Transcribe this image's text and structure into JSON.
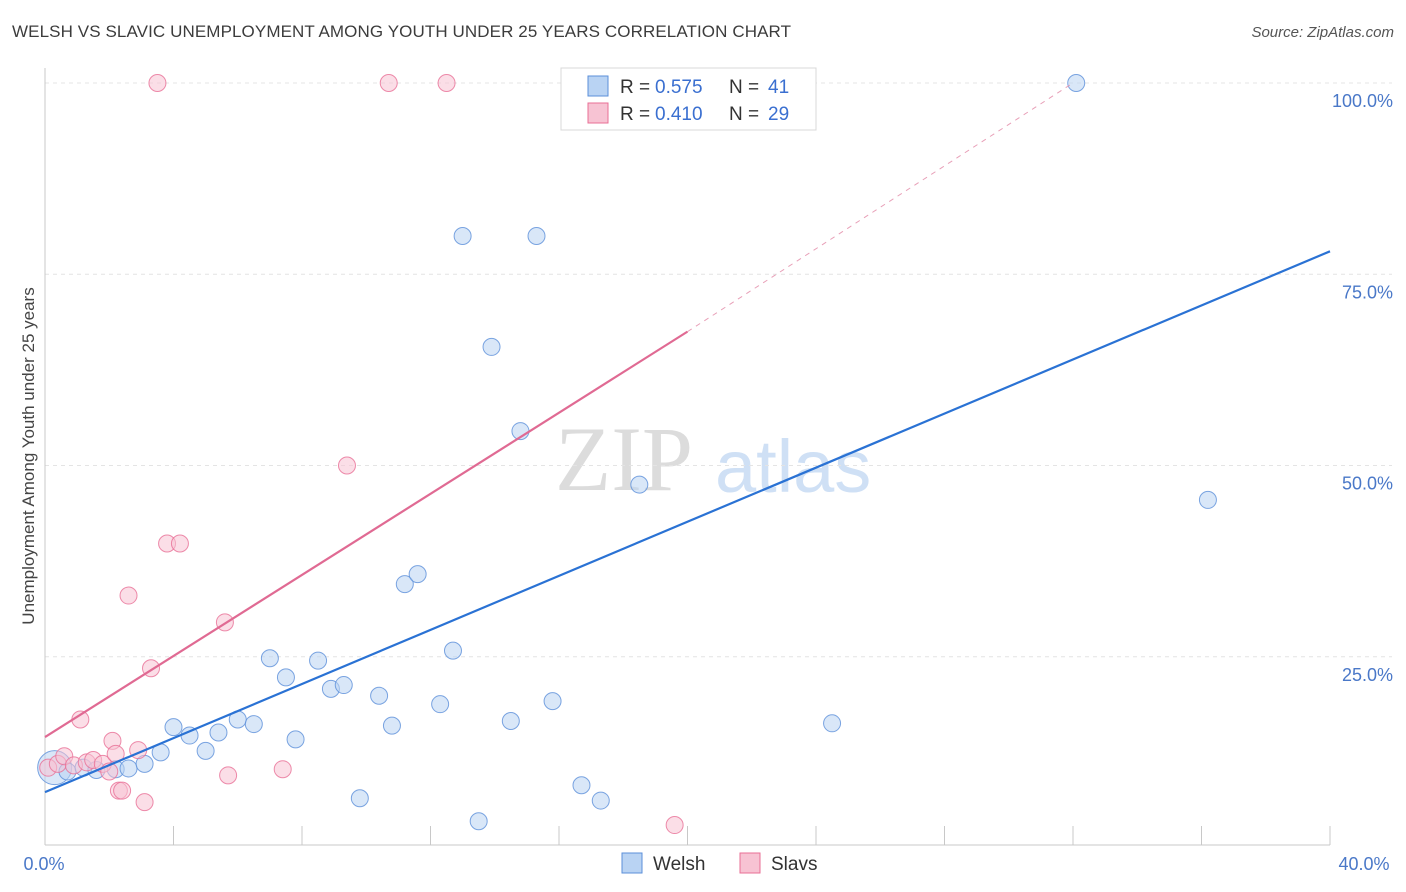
{
  "title": "WELSH VS SLAVIC UNEMPLOYMENT AMONG YOUTH UNDER 25 YEARS CORRELATION CHART",
  "source": "Source: ZipAtlas.com",
  "watermark": {
    "zip": "ZIP",
    "atlas": "atlas"
  },
  "legend": {
    "rows": [
      {
        "r_label": "R =",
        "r_value": "0.575",
        "n_label": "N =",
        "n_value": "41"
      },
      {
        "r_label": "R =",
        "r_value": "0.410",
        "n_label": "N =",
        "n_value": "29"
      }
    ]
  },
  "bottom_legend": [
    "Welsh",
    "Slavs"
  ],
  "chart_data": {
    "type": "scatter",
    "title": "WELSH VS SLAVIC UNEMPLOYMENT AMONG YOUTH UNDER 25 YEARS CORRELATION CHART",
    "xlabel": "",
    "ylabel": "Unemployment Among Youth under 25 years",
    "xlim": [
      0,
      40
    ],
    "ylim": [
      0,
      105
    ],
    "x_tick_labels": [
      "0.0%",
      "40.0%"
    ],
    "y_ticks": [
      25,
      50,
      75,
      100
    ],
    "y_tick_labels": [
      "25.0%",
      "50.0%",
      "75.0%",
      "100.0%"
    ],
    "series": [
      {
        "name": "Welsh",
        "color": "#5b8fd9",
        "fill": "#b9d3f3",
        "R": 0.575,
        "N": 41,
        "trend": {
          "x": [
            0,
            40
          ],
          "y": [
            7.3,
            78
          ]
        },
        "points": [
          {
            "x": 0.3,
            "y": 10.5,
            "big": true
          },
          {
            "x": 0.7,
            "y": 10.0
          },
          {
            "x": 1.2,
            "y": 10.5
          },
          {
            "x": 1.6,
            "y": 10.2
          },
          {
            "x": 2.2,
            "y": 10.3
          },
          {
            "x": 2.6,
            "y": 10.4
          },
          {
            "x": 3.1,
            "y": 11.0
          },
          {
            "x": 3.6,
            "y": 12.5
          },
          {
            "x": 4.0,
            "y": 15.8
          },
          {
            "x": 4.5,
            "y": 14.7
          },
          {
            "x": 5.0,
            "y": 12.7
          },
          {
            "x": 5.4,
            "y": 15.1
          },
          {
            "x": 6.0,
            "y": 16.8
          },
          {
            "x": 6.5,
            "y": 16.2
          },
          {
            "x": 7.0,
            "y": 24.8
          },
          {
            "x": 7.5,
            "y": 22.3
          },
          {
            "x": 7.8,
            "y": 14.2
          },
          {
            "x": 8.5,
            "y": 24.5
          },
          {
            "x": 8.9,
            "y": 20.8
          },
          {
            "x": 9.3,
            "y": 21.3
          },
          {
            "x": 9.8,
            "y": 6.5
          },
          {
            "x": 10.4,
            "y": 19.9
          },
          {
            "x": 10.8,
            "y": 16.0
          },
          {
            "x": 11.2,
            "y": 34.5
          },
          {
            "x": 11.6,
            "y": 35.8
          },
          {
            "x": 12.3,
            "y": 18.8
          },
          {
            "x": 12.7,
            "y": 25.8
          },
          {
            "x": 13.0,
            "y": 80.0
          },
          {
            "x": 13.5,
            "y": 3.5
          },
          {
            "x": 13.9,
            "y": 65.5
          },
          {
            "x": 14.5,
            "y": 16.6
          },
          {
            "x": 14.8,
            "y": 54.5
          },
          {
            "x": 15.3,
            "y": 80.0
          },
          {
            "x": 15.8,
            "y": 19.2
          },
          {
            "x": 16.7,
            "y": 8.2
          },
          {
            "x": 17.3,
            "y": 6.2
          },
          {
            "x": 18.5,
            "y": 47.5
          },
          {
            "x": 24.5,
            "y": 16.3
          },
          {
            "x": 32.1,
            "y": 100.0
          },
          {
            "x": 36.2,
            "y": 45.5
          }
        ]
      },
      {
        "name": "Slavs",
        "color": "#e86f96",
        "fill": "#f7c3d3",
        "R": 0.41,
        "N": 29,
        "trend": {
          "x": [
            0,
            20
          ],
          "y": [
            14.5,
            67.5
          ],
          "dashed_to": {
            "x": 32,
            "y": 100
          }
        },
        "points": [
          {
            "x": 0.1,
            "y": 10.5
          },
          {
            "x": 0.4,
            "y": 11.0
          },
          {
            "x": 0.6,
            "y": 12.0
          },
          {
            "x": 0.9,
            "y": 10.8
          },
          {
            "x": 1.1,
            "y": 16.8
          },
          {
            "x": 1.3,
            "y": 11.2
          },
          {
            "x": 1.5,
            "y": 11.5
          },
          {
            "x": 1.8,
            "y": 11.0
          },
          {
            "x": 2.0,
            "y": 10.0
          },
          {
            "x": 2.1,
            "y": 14.0
          },
          {
            "x": 2.2,
            "y": 12.3
          },
          {
            "x": 2.3,
            "y": 7.5
          },
          {
            "x": 2.4,
            "y": 7.5
          },
          {
            "x": 2.6,
            "y": 33.0
          },
          {
            "x": 2.9,
            "y": 12.8
          },
          {
            "x": 3.1,
            "y": 6.0
          },
          {
            "x": 3.3,
            "y": 23.5
          },
          {
            "x": 3.5,
            "y": 100.0
          },
          {
            "x": 3.8,
            "y": 39.8
          },
          {
            "x": 4.2,
            "y": 39.8
          },
          {
            "x": 5.6,
            "y": 29.5
          },
          {
            "x": 5.7,
            "y": 9.5
          },
          {
            "x": 7.4,
            "y": 10.3
          },
          {
            "x": 9.4,
            "y": 50.0
          },
          {
            "x": 10.7,
            "y": 100.0
          },
          {
            "x": 12.5,
            "y": 100.0
          },
          {
            "x": 19.6,
            "y": 3.0
          }
        ]
      }
    ]
  }
}
